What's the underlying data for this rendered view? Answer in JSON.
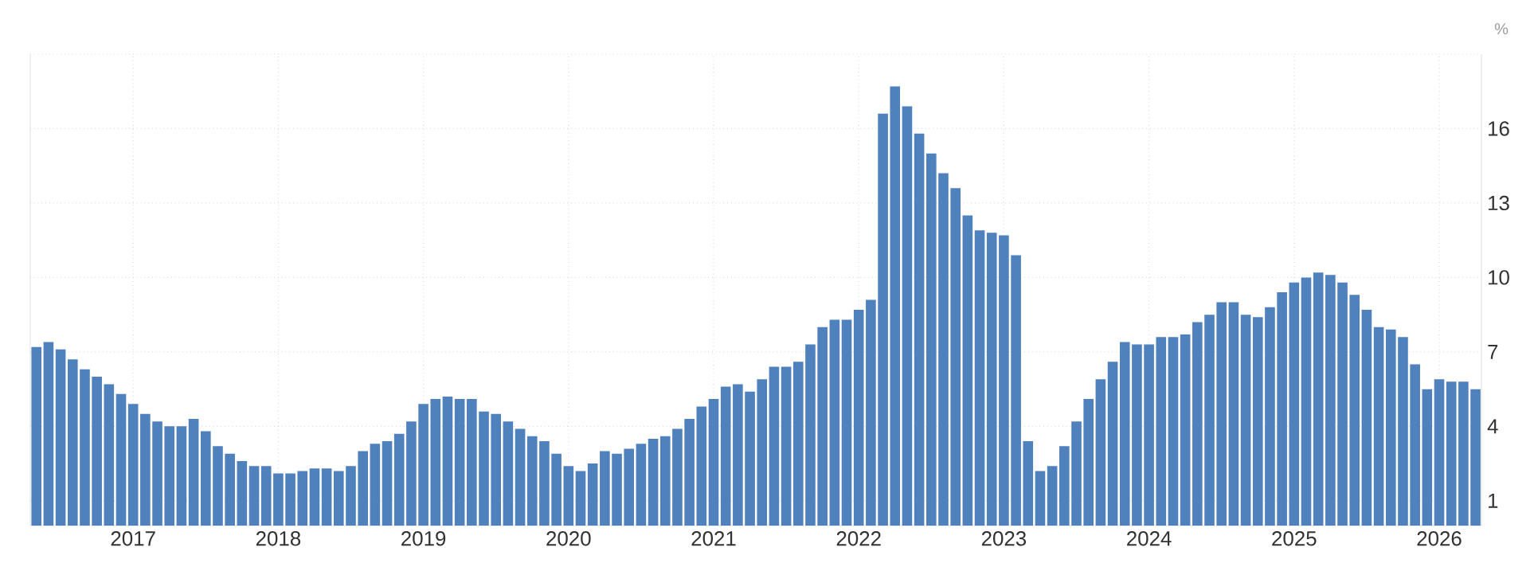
{
  "chart_data": {
    "type": "bar",
    "ylabel": "%",
    "color": "#4f81bd",
    "grid": true,
    "x": [
      "2016-05",
      "2016-06",
      "2016-07",
      "2016-08",
      "2016-09",
      "2016-10",
      "2016-11",
      "2016-12",
      "2017-01",
      "2017-02",
      "2017-03",
      "2017-04",
      "2017-05",
      "2017-06",
      "2017-07",
      "2017-08",
      "2017-09",
      "2017-10",
      "2017-11",
      "2017-12",
      "2018-01",
      "2018-02",
      "2018-03",
      "2018-04",
      "2018-05",
      "2018-06",
      "2018-07",
      "2018-08",
      "2018-09",
      "2018-10",
      "2018-11",
      "2018-12",
      "2019-01",
      "2019-02",
      "2019-03",
      "2019-04",
      "2019-05",
      "2019-06",
      "2019-07",
      "2019-08",
      "2019-09",
      "2019-10",
      "2019-11",
      "2019-12",
      "2020-01",
      "2020-02",
      "2020-03",
      "2020-04",
      "2020-05",
      "2020-06",
      "2020-07",
      "2020-08",
      "2020-09",
      "2020-10",
      "2020-11",
      "2020-12",
      "2021-01",
      "2021-02",
      "2021-03",
      "2021-04",
      "2021-05",
      "2021-06",
      "2021-07",
      "2021-08",
      "2021-09",
      "2021-10",
      "2021-11",
      "2021-12",
      "2022-01",
      "2022-02",
      "2022-03",
      "2022-04",
      "2022-05",
      "2022-06",
      "2022-07",
      "2022-08",
      "2022-09",
      "2022-10",
      "2022-11",
      "2022-12",
      "2023-01",
      "2023-02",
      "2023-03",
      "2023-04",
      "2023-05",
      "2023-06",
      "2023-07",
      "2023-08",
      "2023-09",
      "2023-10",
      "2023-11",
      "2023-12",
      "2024-01",
      "2024-02",
      "2024-03",
      "2024-04",
      "2024-05",
      "2024-06",
      "2024-07",
      "2024-08",
      "2024-09",
      "2024-10",
      "2024-11",
      "2024-12",
      "2025-01",
      "2025-02",
      "2025-03",
      "2025-04",
      "2025-05",
      "2025-06",
      "2025-07",
      "2025-08",
      "2025-09",
      "2025-10",
      "2025-11",
      "2025-12",
      "2026-01",
      "2026-02",
      "2026-03",
      "2026-04"
    ],
    "values": [
      7.2,
      7.4,
      7.1,
      6.7,
      6.3,
      6.0,
      5.7,
      5.3,
      4.9,
      4.5,
      4.2,
      4.0,
      4.0,
      4.3,
      3.8,
      3.2,
      2.9,
      2.6,
      2.4,
      2.4,
      2.1,
      2.1,
      2.2,
      2.3,
      2.3,
      2.2,
      2.4,
      3.0,
      3.3,
      3.4,
      3.7,
      4.2,
      4.9,
      5.1,
      5.2,
      5.1,
      5.1,
      4.6,
      4.5,
      4.2,
      3.9,
      3.6,
      3.4,
      2.9,
      2.4,
      2.2,
      2.5,
      3.0,
      2.9,
      3.1,
      3.3,
      3.5,
      3.6,
      3.9,
      4.3,
      4.8,
      5.1,
      5.6,
      5.7,
      5.4,
      5.9,
      6.4,
      6.4,
      6.6,
      7.3,
      8.0,
      8.3,
      8.3,
      8.7,
      9.1,
      16.6,
      17.7,
      16.9,
      15.8,
      15.0,
      14.2,
      13.6,
      12.5,
      11.9,
      11.8,
      11.7,
      10.9,
      3.4,
      2.2,
      2.4,
      3.2,
      4.2,
      5.1,
      5.9,
      6.6,
      7.4,
      7.3,
      7.3,
      7.6,
      7.6,
      7.7,
      8.2,
      8.5,
      9.0,
      9.0,
      8.5,
      8.4,
      8.8,
      9.4,
      9.8,
      10.0,
      10.2,
      10.1,
      9.8,
      9.3,
      8.7,
      8.0,
      7.9,
      7.6,
      6.5,
      5.5,
      5.9,
      5.8,
      5.8,
      5.5
    ],
    "xlim": [
      "2016-04-16",
      "2026-04-16"
    ],
    "xticks": [
      "2017",
      "2018",
      "2019",
      "2020",
      "2021",
      "2022",
      "2023",
      "2024",
      "2025",
      "2026"
    ],
    "ylim": [
      0,
      19
    ],
    "yticks": [
      1,
      4,
      7,
      10,
      13,
      16,
      {
        "value": 19,
        "label": null
      }
    ]
  }
}
